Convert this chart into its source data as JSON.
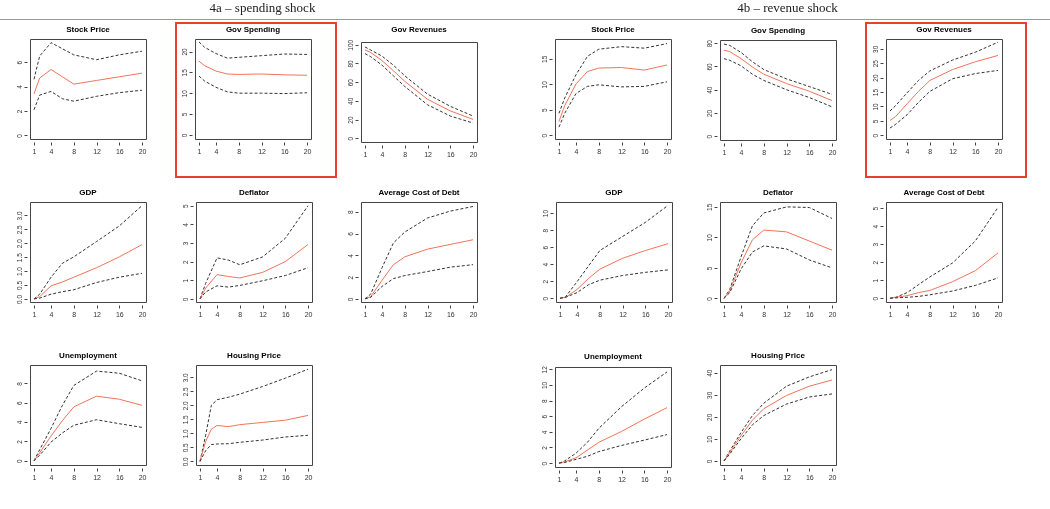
{
  "chart_data": [
    {
      "type": "line",
      "title": "Stock Price",
      "annotations": [
        "4a – spending shock"
      ],
      "x": [
        1,
        2,
        4,
        6,
        8,
        12,
        16,
        20
      ],
      "xlim": [
        0.3,
        20.7
      ],
      "xticks": [
        1,
        4,
        8,
        12,
        16,
        20
      ],
      "ylim": [
        -0.3,
        7.9
      ],
      "yticks": [
        0,
        2,
        4,
        6
      ],
      "grid": false,
      "legend": false,
      "series": [
        {
          "color": "#333333",
          "line_style": "dashed",
          "values": [
            4.6,
            6.5,
            7.6,
            7.1,
            6.6,
            6.2,
            6.6,
            6.9
          ]
        },
        {
          "color": "#f4735a",
          "line_style": "solid",
          "values": [
            3.4,
            4.7,
            5.4,
            4.8,
            4.2,
            4.5,
            4.8,
            5.1
          ]
        },
        {
          "color": "#333333",
          "line_style": "dashed",
          "values": [
            2.1,
            3.3,
            3.6,
            3.0,
            2.8,
            3.2,
            3.5,
            3.7
          ]
        }
      ]
    },
    {
      "type": "line",
      "title": "Gov Spending",
      "x": [
        1,
        2,
        4,
        6,
        8,
        12,
        16,
        20
      ],
      "xlim": [
        0.3,
        20.7
      ],
      "xticks": [
        1,
        4,
        8,
        12,
        16,
        20
      ],
      "ylim": [
        -1,
        23
      ],
      "yticks": [
        0,
        5,
        10,
        15,
        20
      ],
      "grid": false,
      "legend": false,
      "series": [
        {
          "color": "#333333",
          "line_style": "dashed",
          "values": [
            22.3,
            21.0,
            19.5,
            18.4,
            18.6,
            19.0,
            19.4,
            19.3
          ]
        },
        {
          "color": "#f4735a",
          "line_style": "solid",
          "values": [
            17.7,
            16.6,
            15.3,
            14.6,
            14.5,
            14.6,
            14.4,
            14.3
          ]
        },
        {
          "color": "#333333",
          "line_style": "dashed",
          "values": [
            14.1,
            12.9,
            11.4,
            10.3,
            10.0,
            10.0,
            9.9,
            10.1
          ]
        }
      ]
    },
    {
      "type": "line",
      "title": "Gov Revenues",
      "x": [
        1,
        2,
        4,
        6,
        8,
        12,
        16,
        20
      ],
      "xlim": [
        0.3,
        20.7
      ],
      "xticks": [
        1,
        4,
        8,
        12,
        16,
        20
      ],
      "ylim": [
        -4,
        103
      ],
      "yticks": [
        0,
        20,
        40,
        60,
        80,
        100
      ],
      "grid": false,
      "legend": false,
      "series": [
        {
          "color": "#333333",
          "line_style": "dashed",
          "values": [
            97.7,
            94.5,
            87.9,
            78.2,
            66.8,
            47.2,
            34.2,
            23.8
          ]
        },
        {
          "color": "#f4735a",
          "line_style": "solid",
          "values": [
            94.5,
            91.9,
            83.1,
            72.3,
            60.9,
            41.7,
            29.3,
            20.2
          ]
        },
        {
          "color": "#333333",
          "line_style": "dashed",
          "values": [
            90.6,
            87.3,
            78.2,
            66.8,
            55.4,
            35.8,
            23.8,
            16.3
          ]
        }
      ]
    },
    {
      "type": "line",
      "title": "GDP",
      "x": [
        1,
        2,
        4,
        6,
        8,
        12,
        16,
        20
      ],
      "xlim": [
        0.3,
        20.7
      ],
      "xticks": [
        1,
        4,
        8,
        12,
        16,
        20
      ],
      "ylim": [
        -0.11,
        3.48
      ],
      "yticks": [
        {
          "value": 0,
          "label": "0.0"
        },
        0.5,
        {
          "value": 1,
          "label": "1.0"
        },
        1.5,
        {
          "value": 2,
          "label": "2.0"
        },
        2.5,
        {
          "value": 3,
          "label": "3.0"
        }
      ],
      "grid": false,
      "legend": false,
      "series": [
        {
          "color": "#333333",
          "line_style": "dashed",
          "values": [
            0,
            0.17,
            0.78,
            1.28,
            1.51,
            2.06,
            2.62,
            3.35
          ]
        },
        {
          "color": "#f4735a",
          "line_style": "solid",
          "values": [
            0,
            0.08,
            0.47,
            0.61,
            0.78,
            1.12,
            1.51,
            1.95
          ]
        },
        {
          "color": "#333333",
          "line_style": "dashed",
          "values": [
            0,
            0.03,
            0.17,
            0.26,
            0.33,
            0.59,
            0.78,
            0.92
          ]
        }
      ]
    },
    {
      "type": "line",
      "title": "Deflator",
      "x": [
        1,
        2,
        4,
        6,
        8,
        12,
        16,
        20
      ],
      "xlim": [
        0.3,
        20.7
      ],
      "xticks": [
        1,
        4,
        8,
        12,
        16,
        20
      ],
      "ylim": [
        -0.17,
        5.2
      ],
      "yticks": [
        0,
        1,
        2,
        3,
        4,
        5
      ],
      "grid": false,
      "legend": false,
      "series": [
        {
          "color": "#333333",
          "line_style": "dashed",
          "values": [
            0,
            0.83,
            2.2,
            2.08,
            1.83,
            2.25,
            3.25,
            5.0
          ]
        },
        {
          "color": "#f4735a",
          "line_style": "solid",
          "values": [
            0,
            0.58,
            1.3,
            1.2,
            1.12,
            1.42,
            2.0,
            2.92
          ]
        },
        {
          "color": "#333333",
          "line_style": "dashed",
          "values": [
            0,
            0.37,
            0.7,
            0.63,
            0.72,
            0.97,
            1.25,
            1.67
          ]
        }
      ]
    },
    {
      "type": "line",
      "title": "Average Cost of Debt",
      "x": [
        1,
        2,
        4,
        6,
        8,
        12,
        16,
        20
      ],
      "xlim": [
        0.3,
        20.7
      ],
      "xticks": [
        1,
        4,
        8,
        12,
        16,
        20
      ],
      "ylim": [
        -0.29,
        8.9
      ],
      "yticks": [
        0,
        2,
        4,
        6,
        8
      ],
      "grid": false,
      "legend": false,
      "series": [
        {
          "color": "#333333",
          "line_style": "dashed",
          "values": [
            0,
            0.43,
            2.86,
            5.14,
            6.14,
            7.43,
            8.06,
            8.49
          ]
        },
        {
          "color": "#f4735a",
          "line_style": "solid",
          "values": [
            0,
            0.2,
            1.71,
            3.14,
            3.86,
            4.57,
            5.0,
            5.43
          ]
        },
        {
          "color": "#333333",
          "line_style": "dashed",
          "values": [
            0,
            0.14,
            1.14,
            1.86,
            2.14,
            2.51,
            2.91,
            3.14
          ]
        }
      ]
    },
    {
      "type": "line",
      "title": "Unemployment",
      "x": [
        1,
        2,
        4,
        6,
        8,
        12,
        16,
        20
      ],
      "xlim": [
        0.3,
        20.7
      ],
      "xticks": [
        1,
        4,
        8,
        12,
        16,
        20
      ],
      "ylim": [
        -0.44,
        9.9
      ],
      "yticks": [
        0,
        2,
        4,
        6,
        8
      ],
      "grid": false,
      "legend": false,
      "series": [
        {
          "color": "#333333",
          "line_style": "dashed",
          "values": [
            0,
            1.14,
            3.35,
            5.73,
            7.78,
            9.27,
            9.05,
            8.26
          ]
        },
        {
          "color": "#f4735a",
          "line_style": "solid",
          "values": [
            0,
            0.82,
            2.56,
            4.15,
            5.57,
            6.68,
            6.36,
            5.73
          ]
        },
        {
          "color": "#333333",
          "line_style": "dashed",
          "values": [
            0,
            0.57,
            1.93,
            2.88,
            3.67,
            4.24,
            3.83,
            3.45
          ]
        }
      ]
    },
    {
      "type": "line",
      "title": "Housing Price",
      "x": [
        1,
        2,
        3,
        4,
        6,
        8,
        12,
        16,
        20
      ],
      "xlim": [
        0.3,
        20.7
      ],
      "xticks": [
        1,
        4,
        8,
        12,
        16,
        20
      ],
      "ylim": [
        -0.13,
        3.44
      ],
      "yticks": [
        {
          "value": 0,
          "label": "0.0"
        },
        0.5,
        {
          "value": 1,
          "label": "1.0"
        },
        1.5,
        {
          "value": 2,
          "label": "2.0"
        },
        2.5,
        {
          "value": 3,
          "label": "3.0"
        }
      ],
      "grid": false,
      "legend": false,
      "series": [
        {
          "color": "#333333",
          "line_style": "dashed",
          "values": [
            0,
            0.93,
            2.0,
            2.2,
            2.29,
            2.4,
            2.67,
            2.97,
            3.29
          ]
        },
        {
          "color": "#f4735a",
          "line_style": "solid",
          "values": [
            0,
            0.71,
            1.15,
            1.28,
            1.24,
            1.31,
            1.39,
            1.47,
            1.64
          ]
        },
        {
          "color": "#333333",
          "line_style": "dashed",
          "values": [
            0,
            0.38,
            0.6,
            0.62,
            0.63,
            0.68,
            0.76,
            0.87,
            0.93
          ]
        }
      ]
    },
    {
      "type": "line",
      "title": "Stock Price",
      "annotations": [
        "4b – revenue shock"
      ],
      "x": [
        1,
        2,
        4,
        6,
        8,
        12,
        16,
        20
      ],
      "xlim": [
        0.3,
        20.7
      ],
      "xticks": [
        1,
        4,
        8,
        12,
        16,
        20
      ],
      "ylim": [
        -0.73,
        18.9
      ],
      "yticks": [
        0,
        5,
        10,
        15
      ],
      "grid": false,
      "legend": false,
      "series": [
        {
          "color": "#333333",
          "line_style": "dashed",
          "values": [
            4.3,
            7.3,
            11.9,
            15.5,
            16.9,
            17.4,
            17.1,
            18.0
          ]
        },
        {
          "color": "#f4735a",
          "line_style": "solid",
          "values": [
            2.7,
            5.8,
            10.1,
            12.5,
            13.2,
            13.3,
            12.8,
            13.8
          ]
        },
        {
          "color": "#333333",
          "line_style": "dashed",
          "values": [
            1.6,
            4.3,
            8.2,
            9.6,
            9.9,
            9.5,
            9.6,
            10.5
          ]
        }
      ]
    },
    {
      "type": "line",
      "title": "Gov Spending",
      "x": [
        1,
        2,
        4,
        6,
        8,
        12,
        16,
        20
      ],
      "xlim": [
        0.3,
        20.7
      ],
      "xticks": [
        1,
        4,
        8,
        12,
        16,
        20
      ],
      "ylim": [
        -3.2,
        82.7
      ],
      "yticks": [
        0,
        20,
        40,
        60,
        80
      ],
      "grid": false,
      "legend": false,
      "series": [
        {
          "color": "#333333",
          "line_style": "dashed",
          "values": [
            79.2,
            78.1,
            72.0,
            64.0,
            57.3,
            49.3,
            42.7,
            36.0
          ]
        },
        {
          "color": "#f4735a",
          "line_style": "solid",
          "values": [
            73.9,
            72.8,
            66.7,
            59.5,
            53.3,
            45.3,
            38.7,
            30.7
          ]
        },
        {
          "color": "#333333",
          "line_style": "dashed",
          "values": [
            66.7,
            65.3,
            60.5,
            53.3,
            48.0,
            40.0,
            33.3,
            25.3
          ]
        }
      ]
    },
    {
      "type": "line",
      "title": "Gov Revenues",
      "x": [
        1,
        2,
        4,
        6,
        8,
        12,
        16,
        20
      ],
      "xlim": [
        0.3,
        20.7
      ],
      "xticks": [
        1,
        4,
        8,
        12,
        16,
        20
      ],
      "ylim": [
        -1.3,
        33.4
      ],
      "yticks": [
        0,
        5,
        10,
        15,
        20,
        25,
        30
      ],
      "grid": false,
      "legend": false,
      "series": [
        {
          "color": "#333333",
          "line_style": "dashed",
          "values": [
            8.4,
            10.3,
            14.7,
            19.0,
            22.3,
            26.1,
            28.8,
            32.3
          ]
        },
        {
          "color": "#f4735a",
          "line_style": "solid",
          "values": [
            5.1,
            6.5,
            10.9,
            15.2,
            19.0,
            22.8,
            25.5,
            27.7
          ]
        },
        {
          "color": "#333333",
          "line_style": "dashed",
          "values": [
            2.5,
            3.8,
            7.1,
            11.4,
            15.2,
            19.6,
            21.4,
            22.5
          ]
        }
      ]
    },
    {
      "type": "line",
      "title": "GDP",
      "x": [
        1,
        2,
        4,
        6,
        8,
        12,
        16,
        20
      ],
      "xlim": [
        0.3,
        20.7
      ],
      "xticks": [
        1,
        4,
        8,
        12,
        16,
        20
      ],
      "ylim": [
        -0.44,
        11.3
      ],
      "yticks": [
        0,
        2,
        4,
        6,
        8,
        10
      ],
      "grid": false,
      "legend": false,
      "series": [
        {
          "color": "#333333",
          "line_style": "dashed",
          "values": [
            0,
            0.18,
            1.94,
            3.77,
            5.6,
            7.25,
            8.9,
            10.9
          ]
        },
        {
          "color": "#f4735a",
          "line_style": "solid",
          "values": [
            0,
            0.11,
            1.03,
            2.31,
            3.41,
            4.69,
            5.6,
            6.41
          ]
        },
        {
          "color": "#333333",
          "line_style": "dashed",
          "values": [
            0,
            0.11,
            0.66,
            1.58,
            2.12,
            2.67,
            3.04,
            3.33
          ]
        }
      ]
    },
    {
      "type": "line",
      "title": "Deflator",
      "x": [
        1,
        2,
        4,
        6,
        8,
        12,
        16,
        20
      ],
      "xlim": [
        0.3,
        20.7
      ],
      "xticks": [
        1,
        4,
        8,
        12,
        16,
        20
      ],
      "ylim": [
        -0.6,
        15.8
      ],
      "yticks": [
        0,
        5,
        10,
        15
      ],
      "grid": false,
      "legend": false,
      "series": [
        {
          "color": "#333333",
          "line_style": "dashed",
          "values": [
            0,
            1.44,
            6.8,
            11.9,
            14.0,
            15.0,
            14.9,
            13.1
          ]
        },
        {
          "color": "#f4735a",
          "line_style": "solid",
          "values": [
            0,
            1.18,
            5.8,
            9.6,
            11.2,
            10.9,
            9.4,
            7.9
          ]
        },
        {
          "color": "#333333",
          "line_style": "dashed",
          "values": [
            0,
            0.92,
            4.8,
            7.6,
            8.6,
            8.1,
            6.3,
            5.0
          ]
        }
      ]
    },
    {
      "type": "line",
      "title": "Average Cost of Debt",
      "x": [
        1,
        2,
        4,
        6,
        8,
        12,
        16,
        20
      ],
      "xlim": [
        0.3,
        20.7
      ],
      "xticks": [
        1,
        4,
        8,
        12,
        16,
        20
      ],
      "ylim": [
        -0.21,
        5.35
      ],
      "yticks": [
        0,
        1,
        2,
        3,
        4,
        5
      ],
      "grid": false,
      "legend": false,
      "series": [
        {
          "color": "#333333",
          "line_style": "dashed",
          "values": [
            0,
            0.05,
            0.31,
            0.75,
            1.18,
            1.96,
            3.18,
            5.05
          ]
        },
        {
          "color": "#f4735a",
          "line_style": "solid",
          "values": [
            0,
            0.05,
            0.14,
            0.31,
            0.43,
            0.92,
            1.53,
            2.52
          ]
        },
        {
          "color": "#333333",
          "line_style": "dashed",
          "values": [
            0,
            0.02,
            0.05,
            0.1,
            0.19,
            0.4,
            0.71,
            1.13
          ]
        }
      ]
    },
    {
      "type": "line",
      "title": "Unemployment",
      "x": [
        1,
        2,
        4,
        6,
        8,
        12,
        16,
        20
      ],
      "xlim": [
        0.3,
        20.7
      ],
      "xticks": [
        1,
        4,
        8,
        12,
        16,
        20
      ],
      "ylim": [
        -0.5,
        12.3
      ],
      "yticks": [
        0,
        2,
        4,
        6,
        8,
        10,
        12
      ],
      "grid": false,
      "legend": false,
      "series": [
        {
          "color": "#333333",
          "line_style": "dashed",
          "values": [
            0,
            0.28,
            1.27,
            2.66,
            4.44,
            7.22,
            9.6,
            11.67
          ]
        },
        {
          "color": "#f4735a",
          "line_style": "solid",
          "values": [
            0,
            0.16,
            0.67,
            1.67,
            2.66,
            4.05,
            5.63,
            7.1
          ]
        },
        {
          "color": "#333333",
          "line_style": "dashed",
          "values": [
            0,
            0.08,
            0.48,
            0.87,
            1.47,
            2.26,
            2.94,
            3.65
          ]
        }
      ]
    },
    {
      "type": "line",
      "title": "Housing Price",
      "x": [
        1,
        2,
        4,
        6,
        8,
        12,
        16,
        20
      ],
      "xlim": [
        0.3,
        20.7
      ],
      "xticks": [
        1,
        4,
        8,
        12,
        16,
        20
      ],
      "ylim": [
        -1.8,
        43.5
      ],
      "yticks": [
        0,
        10,
        20,
        30,
        40
      ],
      "grid": false,
      "legend": false,
      "series": [
        {
          "color": "#333333",
          "line_style": "dashed",
          "values": [
            0,
            4.5,
            12.9,
            20.6,
            26.2,
            33.9,
            38.1,
            41.4
          ]
        },
        {
          "color": "#f4735a",
          "line_style": "solid",
          "values": [
            0,
            3.8,
            11.5,
            18.5,
            23.7,
            29.7,
            33.9,
            36.7
          ]
        },
        {
          "color": "#333333",
          "line_style": "dashed",
          "values": [
            0,
            3.1,
            10.1,
            16.4,
            20.6,
            25.8,
            29.0,
            30.4
          ]
        }
      ]
    }
  ]
}
